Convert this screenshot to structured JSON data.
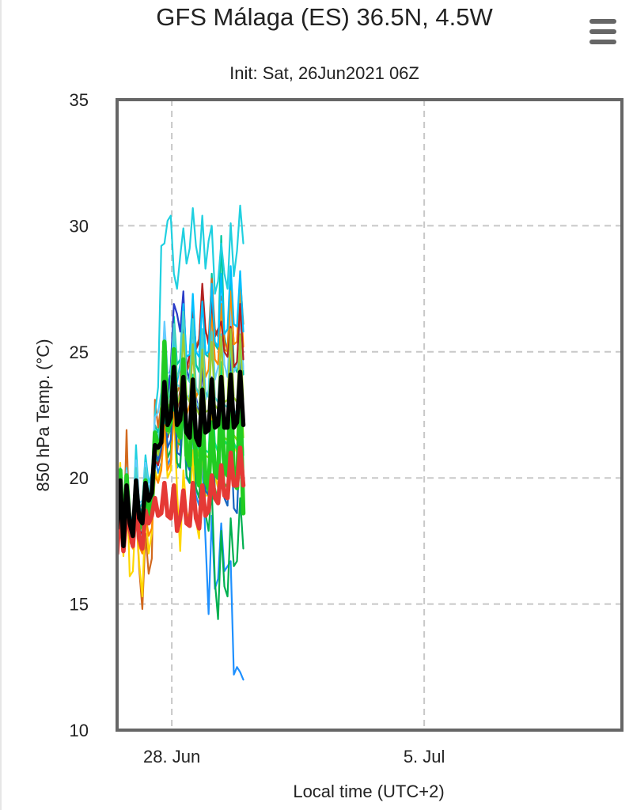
{
  "chart_data": {
    "type": "line",
    "title": "GFS Málaga (ES) 36.5N, 4.5W",
    "subtitle": "Init: Sat, 26Jun2021 06Z",
    "xlabel": "Local time (UTC+2)",
    "ylabel": "850 hPa Temp. (°C)",
    "ylim": [
      10,
      35
    ],
    "yticks": [
      10,
      15,
      20,
      25,
      30,
      35
    ],
    "xlim": [
      0,
      60
    ],
    "xticks": [
      {
        "x": 6.5,
        "label": "28. Jun"
      },
      {
        "x": 36.5,
        "label": "5. Jul"
      }
    ],
    "grid": true,
    "x_step_hours": 6,
    "series": [
      {
        "role": "ensemble-mean",
        "color": "#000000",
        "values": [
          18.0,
          19.9,
          17.3,
          19.7,
          18.2,
          17.7,
          19.9,
          18.4,
          18.2,
          19.8,
          19.1,
          19.4,
          21.3,
          21.2,
          21.4,
          23.8,
          22.1,
          22.4,
          24.4,
          22.1,
          22.3,
          24.0,
          21.8,
          21.6,
          23.9,
          21.6,
          21.3,
          23.5,
          21.8,
          21.9,
          23.9,
          22.0,
          22.1,
          24.0,
          22.0,
          22.0,
          24.1,
          22.0,
          22.2,
          24.2,
          22.1
        ]
      },
      {
        "role": "operational-run",
        "color": "#e53935",
        "values": [
          17.0,
          18.9,
          17.1,
          18.5,
          18.0,
          17.3,
          19.0,
          17.6,
          17.2,
          18.7,
          18.2,
          18.5,
          19.2,
          18.5,
          18.6,
          19.8,
          18.5,
          18.4,
          19.7,
          17.9,
          18.4,
          19.5,
          18.2,
          18.1,
          19.8,
          18.4,
          18.0,
          19.7,
          18.5,
          18.7,
          20.1,
          19.2,
          19.0,
          20.5,
          19.3,
          19.2,
          21.0,
          19.7,
          19.7,
          21.2,
          19.7
        ]
      },
      {
        "role": "control-run",
        "color": "#22cc22",
        "values": [
          18.1,
          20.3,
          17.4,
          20.1,
          18.1,
          17.7,
          19.5,
          18.0,
          18.2,
          19.9,
          18.5,
          18.8,
          21.8,
          21.3,
          21.5,
          25.4,
          21.9,
          22.2,
          25.1,
          21.9,
          21.6,
          24.7,
          20.9,
          20.5,
          23.5,
          20.6,
          19.7,
          22.8,
          19.9,
          19.6,
          22.2,
          20.2,
          20.0,
          23.6,
          20.3,
          20.1,
          23.9,
          19.8,
          19.6,
          23.2,
          18.6
        ]
      },
      {
        "role": "member",
        "color": "#00c8a0",
        "values": [
          18.2,
          20.1,
          17.8,
          19.9,
          18.5,
          18.3,
          20.5,
          18.9,
          18.5,
          20.1,
          19.3,
          19.9,
          22.1,
          21.8,
          22.5,
          25.8,
          23.6,
          24.3,
          26.4,
          24.5,
          24.7,
          27.2,
          24.2,
          24.0,
          27.0,
          24.5,
          24.2,
          27.5,
          24.9,
          24.8,
          28.1,
          25.3,
          25.1,
          29.6,
          25.6,
          25.0,
          28.0,
          24.5,
          24.2,
          27.5,
          24.1
        ]
      },
      {
        "role": "member",
        "color": "#1e90ff",
        "values": [
          18.4,
          19.8,
          17.1,
          19.3,
          17.8,
          17.4,
          19.5,
          18.1,
          17.7,
          19.2,
          18.5,
          18.9,
          20.8,
          20.2,
          20.6,
          22.3,
          20.5,
          20.8,
          22.9,
          20.4,
          20.6,
          22.8,
          20.0,
          19.8,
          22.0,
          19.3,
          18.9,
          20.6,
          17.6,
          14.6,
          18.5,
          15.6,
          16.0,
          18.2,
          16.3,
          16.5,
          16.7,
          12.2,
          12.5,
          12.3,
          12.0
        ]
      },
      {
        "role": "member",
        "color": "#d2691e",
        "values": [
          17.6,
          19.4,
          17.0,
          21.9,
          17.5,
          17.2,
          18.8,
          16.4,
          14.8,
          17.8,
          16.2,
          16.8,
          23.1,
          22.0,
          22.9,
          24.5,
          23.1,
          23.5,
          25.6,
          23.4,
          23.7,
          26.0,
          24.2,
          24.5,
          26.6,
          25.2,
          25.5,
          27.3,
          25.8,
          25.5,
          27.9,
          25.9,
          25.6,
          27.2,
          25.4,
          25.1,
          27.3,
          25.3,
          25.4,
          27.9,
          26.1
        ]
      },
      {
        "role": "member",
        "color": "#ffd700",
        "values": [
          18.8,
          20.6,
          16.9,
          20.2,
          16.1,
          16.3,
          18.9,
          16.6,
          15.3,
          18.7,
          17.0,
          17.8,
          20.3,
          19.9,
          20.5,
          21.9,
          20.0,
          20.3,
          22.7,
          19.5,
          17.1,
          20.3,
          18.7,
          18.2,
          21.1,
          18.3,
          17.6,
          21.4,
          19.3,
          19.3,
          22.8,
          20.1,
          19.6,
          23.0,
          20.8,
          20.9,
          23.7,
          21.3,
          21.0,
          23.4,
          21.0
        ]
      },
      {
        "role": "member",
        "color": "#20d0e0",
        "values": [
          18.6,
          20.4,
          17.5,
          20.4,
          18.4,
          18.0,
          21.3,
          18.8,
          19.0,
          20.9,
          19.8,
          20.2,
          22.5,
          23.6,
          29.2,
          29.3,
          30.2,
          30.4,
          28.1,
          27.5,
          28.8,
          29.9,
          28.5,
          29.1,
          30.7,
          29.2,
          28.5,
          30.4,
          28.3,
          29.4,
          30.0,
          27.3,
          27.8,
          29.3,
          28.1,
          27.5,
          30.1,
          28.0,
          29.0,
          30.8,
          29.3
        ]
      },
      {
        "role": "member",
        "color": "#7fdd00",
        "values": [
          18.5,
          20.0,
          17.6,
          20.0,
          18.7,
          18.0,
          20.2,
          18.6,
          18.4,
          20.3,
          19.2,
          19.6,
          21.7,
          21.4,
          22.0,
          24.8,
          22.7,
          23.0,
          25.2,
          22.4,
          22.1,
          24.5,
          21.9,
          21.6,
          23.9,
          21.3,
          20.8,
          23.0,
          20.9,
          20.8,
          23.5,
          21.3,
          21.1,
          24.2,
          21.6,
          21.5,
          24.5,
          21.7,
          21.5,
          24.3,
          21.6
        ]
      },
      {
        "role": "member",
        "color": "#2a3cc8",
        "values": [
          18.3,
          19.7,
          17.4,
          19.6,
          18.0,
          17.8,
          19.6,
          18.2,
          18.1,
          19.5,
          18.9,
          19.2,
          21.0,
          20.9,
          21.6,
          24.1,
          22.9,
          24.4,
          26.9,
          26.5,
          25.8,
          27.4,
          24.3,
          23.9,
          25.7,
          23.2,
          22.6,
          24.4,
          22.2,
          21.9,
          24.0,
          22.4,
          22.1,
          24.6,
          22.3,
          22.0,
          24.8,
          22.4,
          22.2,
          24.9,
          22.3
        ]
      },
      {
        "role": "member",
        "color": "#00b050",
        "values": [
          18.0,
          19.6,
          17.2,
          19.5,
          17.9,
          17.6,
          19.4,
          18.3,
          18.0,
          19.6,
          18.7,
          19.1,
          21.0,
          20.6,
          21.0,
          23.0,
          20.8,
          21.1,
          23.2,
          20.6,
          20.4,
          22.8,
          20.1,
          19.8,
          22.5,
          19.6,
          19.2,
          21.8,
          18.6,
          17.9,
          19.6,
          15.9,
          14.4,
          17.9,
          15.7,
          15.3,
          18.4,
          16.5,
          16.7,
          19.2,
          17.2
        ]
      },
      {
        "role": "member",
        "color": "#66ccff",
        "values": [
          18.7,
          20.2,
          17.7,
          20.3,
          18.6,
          18.2,
          20.7,
          19.0,
          19.1,
          20.6,
          19.5,
          20.0,
          22.4,
          22.6,
          23.4,
          26.2,
          24.2,
          24.1,
          26.1,
          23.7,
          23.6,
          25.9,
          23.1,
          23.3,
          25.5,
          23.0,
          22.8,
          25.4,
          23.1,
          23.5,
          26.3,
          23.9,
          24.4,
          27.0,
          24.5,
          24.0,
          26.8,
          24.2,
          24.4,
          26.5,
          24.3
        ]
      },
      {
        "role": "member",
        "color": "#ff8c00",
        "values": [
          17.9,
          19.3,
          17.1,
          19.1,
          17.6,
          17.2,
          18.9,
          17.3,
          17.0,
          18.6,
          17.7,
          18.0,
          20.1,
          19.8,
          20.3,
          22.1,
          20.3,
          20.6,
          22.6,
          21.0,
          21.9,
          24.4,
          22.5,
          22.9,
          25.1,
          23.2,
          23.5,
          25.8,
          24.0,
          24.3,
          26.6,
          24.7,
          24.5,
          26.9,
          25.1,
          25.0,
          27.4,
          25.3,
          25.4,
          27.6,
          25.2
        ]
      },
      {
        "role": "member",
        "color": "#00e68a",
        "values": [
          18.1,
          20.0,
          17.5,
          20.0,
          18.3,
          18.1,
          20.0,
          18.6,
          18.5,
          20.2,
          19.1,
          19.6,
          21.5,
          21.2,
          21.8,
          24.3,
          22.2,
          22.5,
          24.7,
          22.2,
          22.2,
          24.3,
          21.8,
          21.7,
          24.1,
          21.5,
          21.1,
          23.6,
          21.1,
          21.0,
          23.7,
          21.4,
          21.0,
          24.6,
          21.5,
          21.3,
          24.2,
          21.4,
          21.1,
          24.0,
          20.9
        ]
      },
      {
        "role": "member",
        "color": "#b22222",
        "values": [
          18.2,
          19.5,
          17.3,
          19.4,
          17.7,
          17.5,
          19.3,
          17.9,
          17.8,
          19.3,
          18.4,
          18.8,
          20.7,
          20.5,
          21.1,
          23.5,
          21.6,
          22.0,
          24.2,
          22.6,
          23.5,
          26.1,
          24.3,
          24.9,
          26.8,
          25.1,
          25.4,
          27.7,
          25.9,
          25.3,
          27.0,
          25.6,
          25.9,
          26.2,
          25.0,
          24.8,
          26.0,
          24.4,
          24.6,
          26.9,
          24.7
        ]
      },
      {
        "role": "member",
        "color": "#00bfff",
        "values": [
          18.6,
          20.1,
          17.6,
          20.1,
          18.5,
          18.3,
          20.3,
          18.8,
          18.6,
          20.1,
          19.3,
          19.7,
          21.8,
          21.5,
          22.3,
          25.0,
          23.1,
          23.4,
          25.6,
          23.8,
          24.5,
          26.9,
          24.8,
          24.9,
          27.3,
          25.0,
          24.8,
          27.0,
          24.9,
          25.0,
          27.7,
          25.4,
          25.2,
          28.1,
          25.7,
          25.9,
          28.4,
          26.1,
          26.0,
          28.2,
          25.8
        ]
      },
      {
        "role": "member",
        "color": "#32cd32",
        "values": [
          18.4,
          19.9,
          17.7,
          19.8,
          18.2,
          18.0,
          20.1,
          18.5,
          18.3,
          20.0,
          18.9,
          19.3,
          21.3,
          21.0,
          21.5,
          23.9,
          21.7,
          21.9,
          24.0,
          21.4,
          21.3,
          23.8,
          21.1,
          20.8,
          23.3,
          20.5,
          20.0,
          22.5,
          19.7,
          19.4,
          22.0,
          19.6,
          19.1,
          22.7,
          19.8,
          19.6,
          23.2,
          20.0,
          19.8,
          23.4,
          19.9
        ]
      },
      {
        "role": "member",
        "color": "#48d1cc",
        "values": [
          18.5,
          20.2,
          17.4,
          19.9,
          18.4,
          17.9,
          20.4,
          18.7,
          18.6,
          20.4,
          19.4,
          19.8,
          21.9,
          21.6,
          22.2,
          25.1,
          23.0,
          23.6,
          26.1,
          24.0,
          24.3,
          26.6,
          24.0,
          23.8,
          26.3,
          23.6,
          23.3,
          25.9,
          23.4,
          23.2,
          25.8,
          23.2,
          23.0,
          25.7,
          22.9,
          22.8,
          25.6,
          22.7,
          22.5,
          25.4,
          22.6
        ]
      },
      {
        "role": "member",
        "color": "#1565c0",
        "values": [
          18.3,
          19.8,
          17.5,
          19.7,
          18.1,
          17.7,
          19.8,
          18.3,
          18.1,
          19.7,
          18.7,
          19.1,
          21.1,
          20.7,
          21.2,
          23.4,
          21.2,
          21.5,
          23.6,
          21.0,
          20.9,
          23.3,
          20.6,
          20.3,
          22.8,
          20.1,
          19.7,
          22.2,
          19.5,
          19.3,
          21.9,
          19.4,
          19.0,
          22.1,
          19.2,
          18.9,
          21.9,
          18.8,
          18.6,
          21.7,
          18.7
        ]
      },
      {
        "role": "member",
        "color": "#9acd32",
        "values": [
          18.0,
          19.7,
          17.3,
          19.6,
          18.0,
          17.6,
          19.7,
          18.1,
          17.9,
          19.8,
          18.8,
          19.2,
          21.2,
          20.9,
          21.5,
          23.7,
          21.8,
          22.3,
          24.8,
          22.9,
          23.3,
          25.7,
          23.3,
          23.0,
          25.3,
          22.8,
          22.5,
          25.1,
          22.6,
          22.7,
          25.4,
          22.9,
          22.7,
          25.6,
          23.0,
          23.1,
          25.9,
          23.2,
          23.0,
          25.7,
          23.1
        ]
      }
    ]
  }
}
